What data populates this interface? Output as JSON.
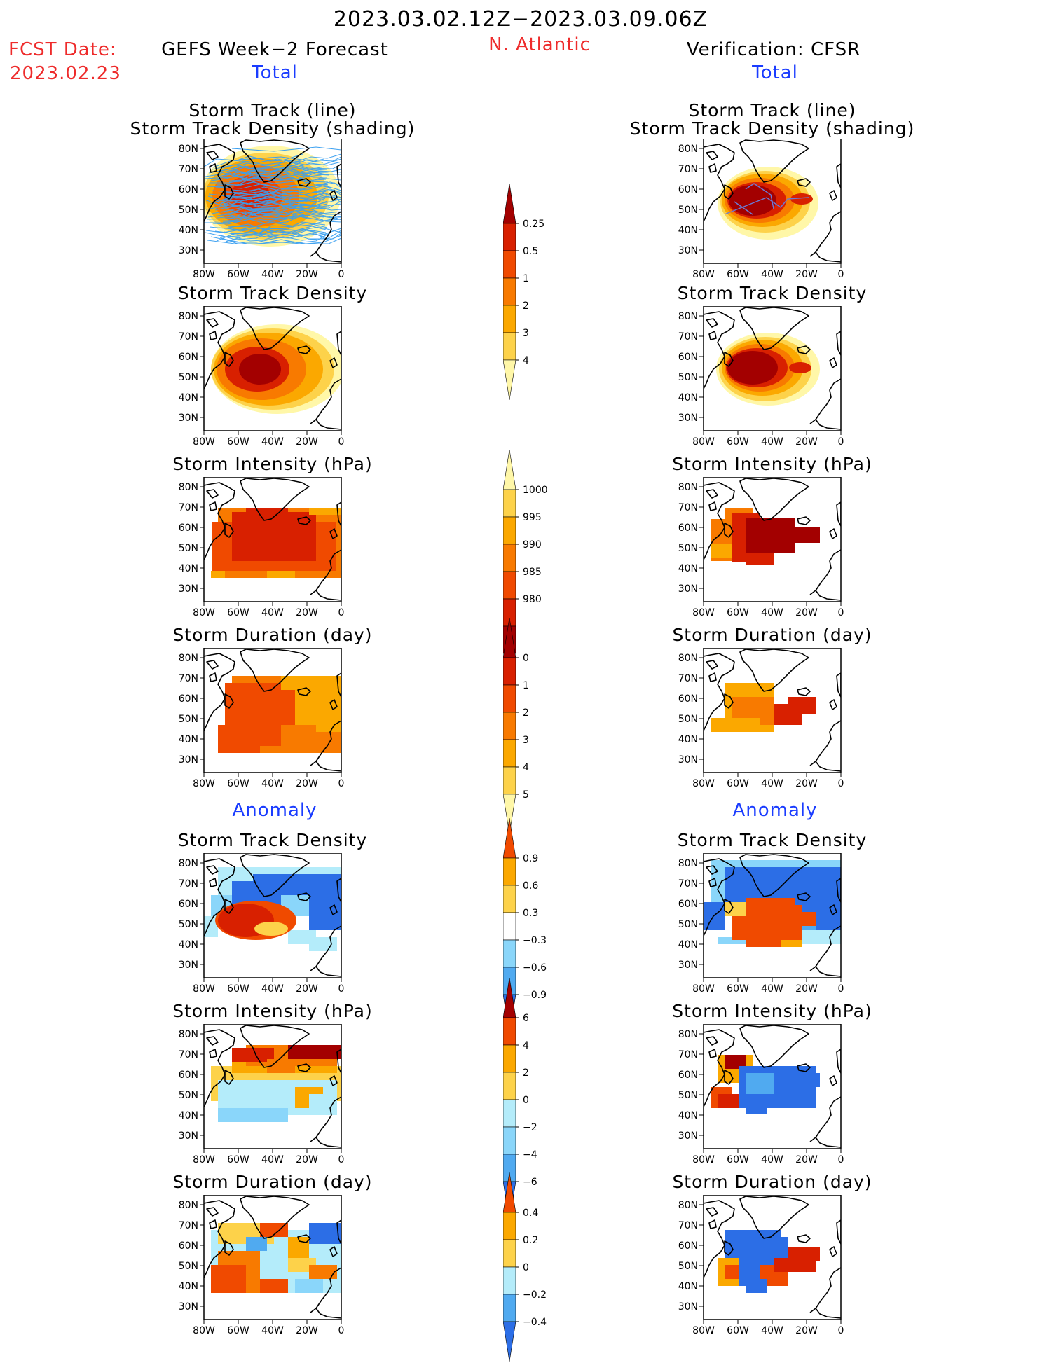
{
  "header": {
    "period": "2023.03.02.12Z−2023.03.09.06Z",
    "fcst_label": "FCST Date:",
    "fcst_date": "2023.02.23",
    "left_title": "GEFS Week−2 Forecast",
    "region": "N. Atlantic",
    "right_title": "Verification: CFSR",
    "left_section": "Total",
    "right_section": "Total",
    "left_anomaly": "Anomaly",
    "right_anomaly": "Anomaly"
  },
  "axes": {
    "lat_ticks": [
      "80N",
      "70N",
      "60N",
      "50N",
      "40N",
      "30N"
    ],
    "lon_ticks": [
      "80W",
      "60W",
      "40W",
      "20W",
      "0"
    ]
  },
  "colors": {
    "darkred": "#a30000",
    "red": "#d82000",
    "redorange": "#f04a00",
    "orange": "#f87a00",
    "amber": "#fba800",
    "yellow": "#fdd24a",
    "paleyellow": "#fff7a8",
    "lightblue": "#b4ecfa",
    "skyblue": "#8ad6fa",
    "midblue": "#50aaf0",
    "blue": "#2c6ee6",
    "darkblue": "#1e50cc",
    "track": "#3ba0f0"
  },
  "panels": [
    {
      "col": "left",
      "row": 0,
      "title_lines": [
        "Storm Track (line)",
        "Storm Track Density (shading)"
      ]
    },
    {
      "col": "right",
      "row": 0,
      "title_lines": [
        "Storm Track (line)",
        "Storm Track Density (shading)"
      ]
    },
    {
      "col": "left",
      "row": 1,
      "title_lines": [
        "Storm Track Density"
      ]
    },
    {
      "col": "right",
      "row": 1,
      "title_lines": [
        "Storm Track Density"
      ]
    },
    {
      "col": "left",
      "row": 2,
      "title_lines": [
        "Storm Intensity (hPa)"
      ]
    },
    {
      "col": "right",
      "row": 2,
      "title_lines": [
        "Storm Intensity (hPa)"
      ]
    },
    {
      "col": "left",
      "row": 3,
      "title_lines": [
        "Storm Duration (day)"
      ]
    },
    {
      "col": "right",
      "row": 3,
      "title_lines": [
        "Storm Duration (day)"
      ]
    },
    {
      "col": "left",
      "row": 4,
      "title_lines": [
        "Storm Track Density"
      ]
    },
    {
      "col": "right",
      "row": 4,
      "title_lines": [
        "Storm Track Density"
      ]
    },
    {
      "col": "left",
      "row": 5,
      "title_lines": [
        "Storm Intensity (hPa)"
      ]
    },
    {
      "col": "right",
      "row": 5,
      "title_lines": [
        "Storm Intensity (hPa)"
      ]
    },
    {
      "col": "left",
      "row": 6,
      "title_lines": [
        "Storm Duration (day)"
      ]
    },
    {
      "col": "right",
      "row": 6,
      "title_lines": [
        "Storm Duration (day)"
      ]
    }
  ],
  "chart_data": [
    {
      "type": "heatmap",
      "variable": "storm_track_density",
      "section": "Total",
      "legend": [
        "0.25",
        "0.5",
        "1",
        "2",
        "3",
        "4"
      ]
    },
    {
      "type": "heatmap",
      "variable": "storm_intensity_hPa",
      "section": "Total",
      "legend": [
        "1000",
        "995",
        "990",
        "985",
        "980"
      ]
    },
    {
      "type": "heatmap",
      "variable": "storm_duration_day",
      "section": "Total",
      "legend": [
        "0",
        "1",
        "2",
        "3",
        "4",
        "5"
      ]
    },
    {
      "type": "heatmap",
      "variable": "storm_track_density",
      "section": "Anomaly",
      "legend": [
        "0.9",
        "0.6",
        "0.3",
        "−0.3",
        "−0.6",
        "−0.9"
      ]
    },
    {
      "type": "heatmap",
      "variable": "storm_intensity_hPa",
      "section": "Anomaly",
      "legend": [
        "6",
        "4",
        "2",
        "0",
        "−2",
        "−4",
        "−6"
      ]
    },
    {
      "type": "heatmap",
      "variable": "storm_duration_day",
      "section": "Anomaly",
      "legend": [
        "0.4",
        "0.2",
        "0",
        "−0.2",
        "−0.4"
      ]
    }
  ]
}
